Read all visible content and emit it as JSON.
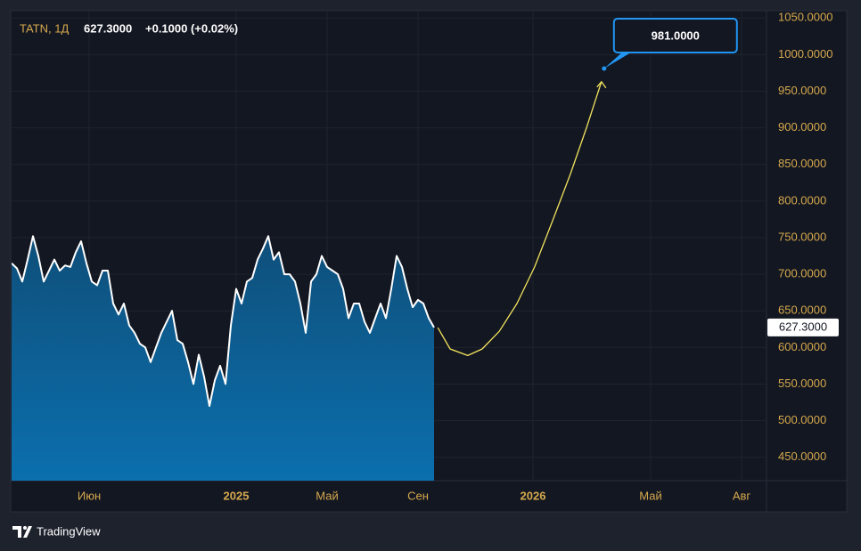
{
  "chart_data": {
    "type": "area",
    "symbol": "TATN, 1Д",
    "last": {
      "value": 627.3,
      "label": "627.3000"
    },
    "change": "+0.1000 (+0.02%)",
    "brand": "TradingView",
    "xlim": [
      0,
      141
    ],
    "ylim": [
      418,
      1060
    ],
    "xticks": [
      {
        "value": 14.5,
        "label": "Июн"
      },
      {
        "value": 42,
        "label": "2025"
      },
      {
        "value": 59,
        "label": "Май"
      },
      {
        "value": 76,
        "label": "Сен"
      },
      {
        "value": 97.5,
        "label": "2026"
      },
      {
        "value": 119.5,
        "label": "Май"
      },
      {
        "value": 136.5,
        "label": "Авг"
      }
    ],
    "yticks": [
      {
        "value": 450,
        "label": "450.0000"
      },
      {
        "value": 500,
        "label": "500.0000"
      },
      {
        "value": 550,
        "label": "550.0000"
      },
      {
        "value": 600,
        "label": "600.0000"
      },
      {
        "value": 650,
        "label": "650.0000"
      },
      {
        "value": 700,
        "label": "700.0000"
      },
      {
        "value": 750,
        "label": "750.0000"
      },
      {
        "value": 800,
        "label": "800.0000"
      },
      {
        "value": 850,
        "label": "850.0000"
      },
      {
        "value": 900,
        "label": "900.0000"
      },
      {
        "value": 950,
        "label": "950.0000"
      },
      {
        "value": 1000,
        "label": "1000.0000"
      },
      {
        "value": 1050,
        "label": "1050.0000"
      }
    ],
    "grid": true,
    "series": [
      {
        "color": "#ffffff",
        "x": [
          0,
          1,
          2,
          3,
          4,
          5,
          6,
          7,
          8,
          9,
          10,
          11,
          12,
          13,
          14,
          15,
          16,
          17,
          18,
          19,
          20,
          21,
          22,
          23,
          24,
          25,
          26,
          27,
          28,
          29,
          30,
          31,
          32,
          33,
          34,
          35,
          36,
          37,
          38,
          39,
          40,
          41,
          42,
          43,
          44,
          45,
          46,
          47,
          48,
          49,
          50,
          51,
          52,
          53,
          54,
          55,
          56,
          57,
          58,
          59,
          60,
          61,
          62,
          63,
          64,
          65,
          66,
          67,
          68,
          69,
          70,
          71,
          72,
          73,
          74,
          75,
          76,
          77,
          78,
          79
        ],
        "values": [
          715,
          708,
          690,
          720,
          752,
          725,
          690,
          705,
          720,
          705,
          712,
          710,
          730,
          745,
          715,
          690,
          685,
          705,
          705,
          660,
          645,
          660,
          630,
          620,
          605,
          600,
          580,
          600,
          620,
          635,
          650,
          610,
          605,
          580,
          550,
          590,
          560,
          520,
          555,
          575,
          550,
          630,
          680,
          660,
          690,
          695,
          720,
          735,
          752,
          720,
          730,
          700,
          700,
          690,
          660,
          620,
          690,
          700,
          725,
          710,
          705,
          700,
          680,
          640,
          660,
          660,
          635,
          620,
          640,
          660,
          640,
          680,
          725,
          710,
          680,
          655,
          665,
          660,
          640,
          627.3
        ]
      },
      {
        "color": "#f2e35d",
        "x": [
          79.7,
          82,
          85.3,
          88,
          91.2,
          94.5,
          97.8,
          101,
          104.5,
          107.5,
          110.3
        ],
        "values": [
          627,
          598,
          589,
          598,
          622,
          660,
          710,
          770,
          837,
          900,
          963
        ]
      }
    ],
    "target": {
      "x": 110.8,
      "value": 981,
      "label": "981.0000"
    }
  }
}
